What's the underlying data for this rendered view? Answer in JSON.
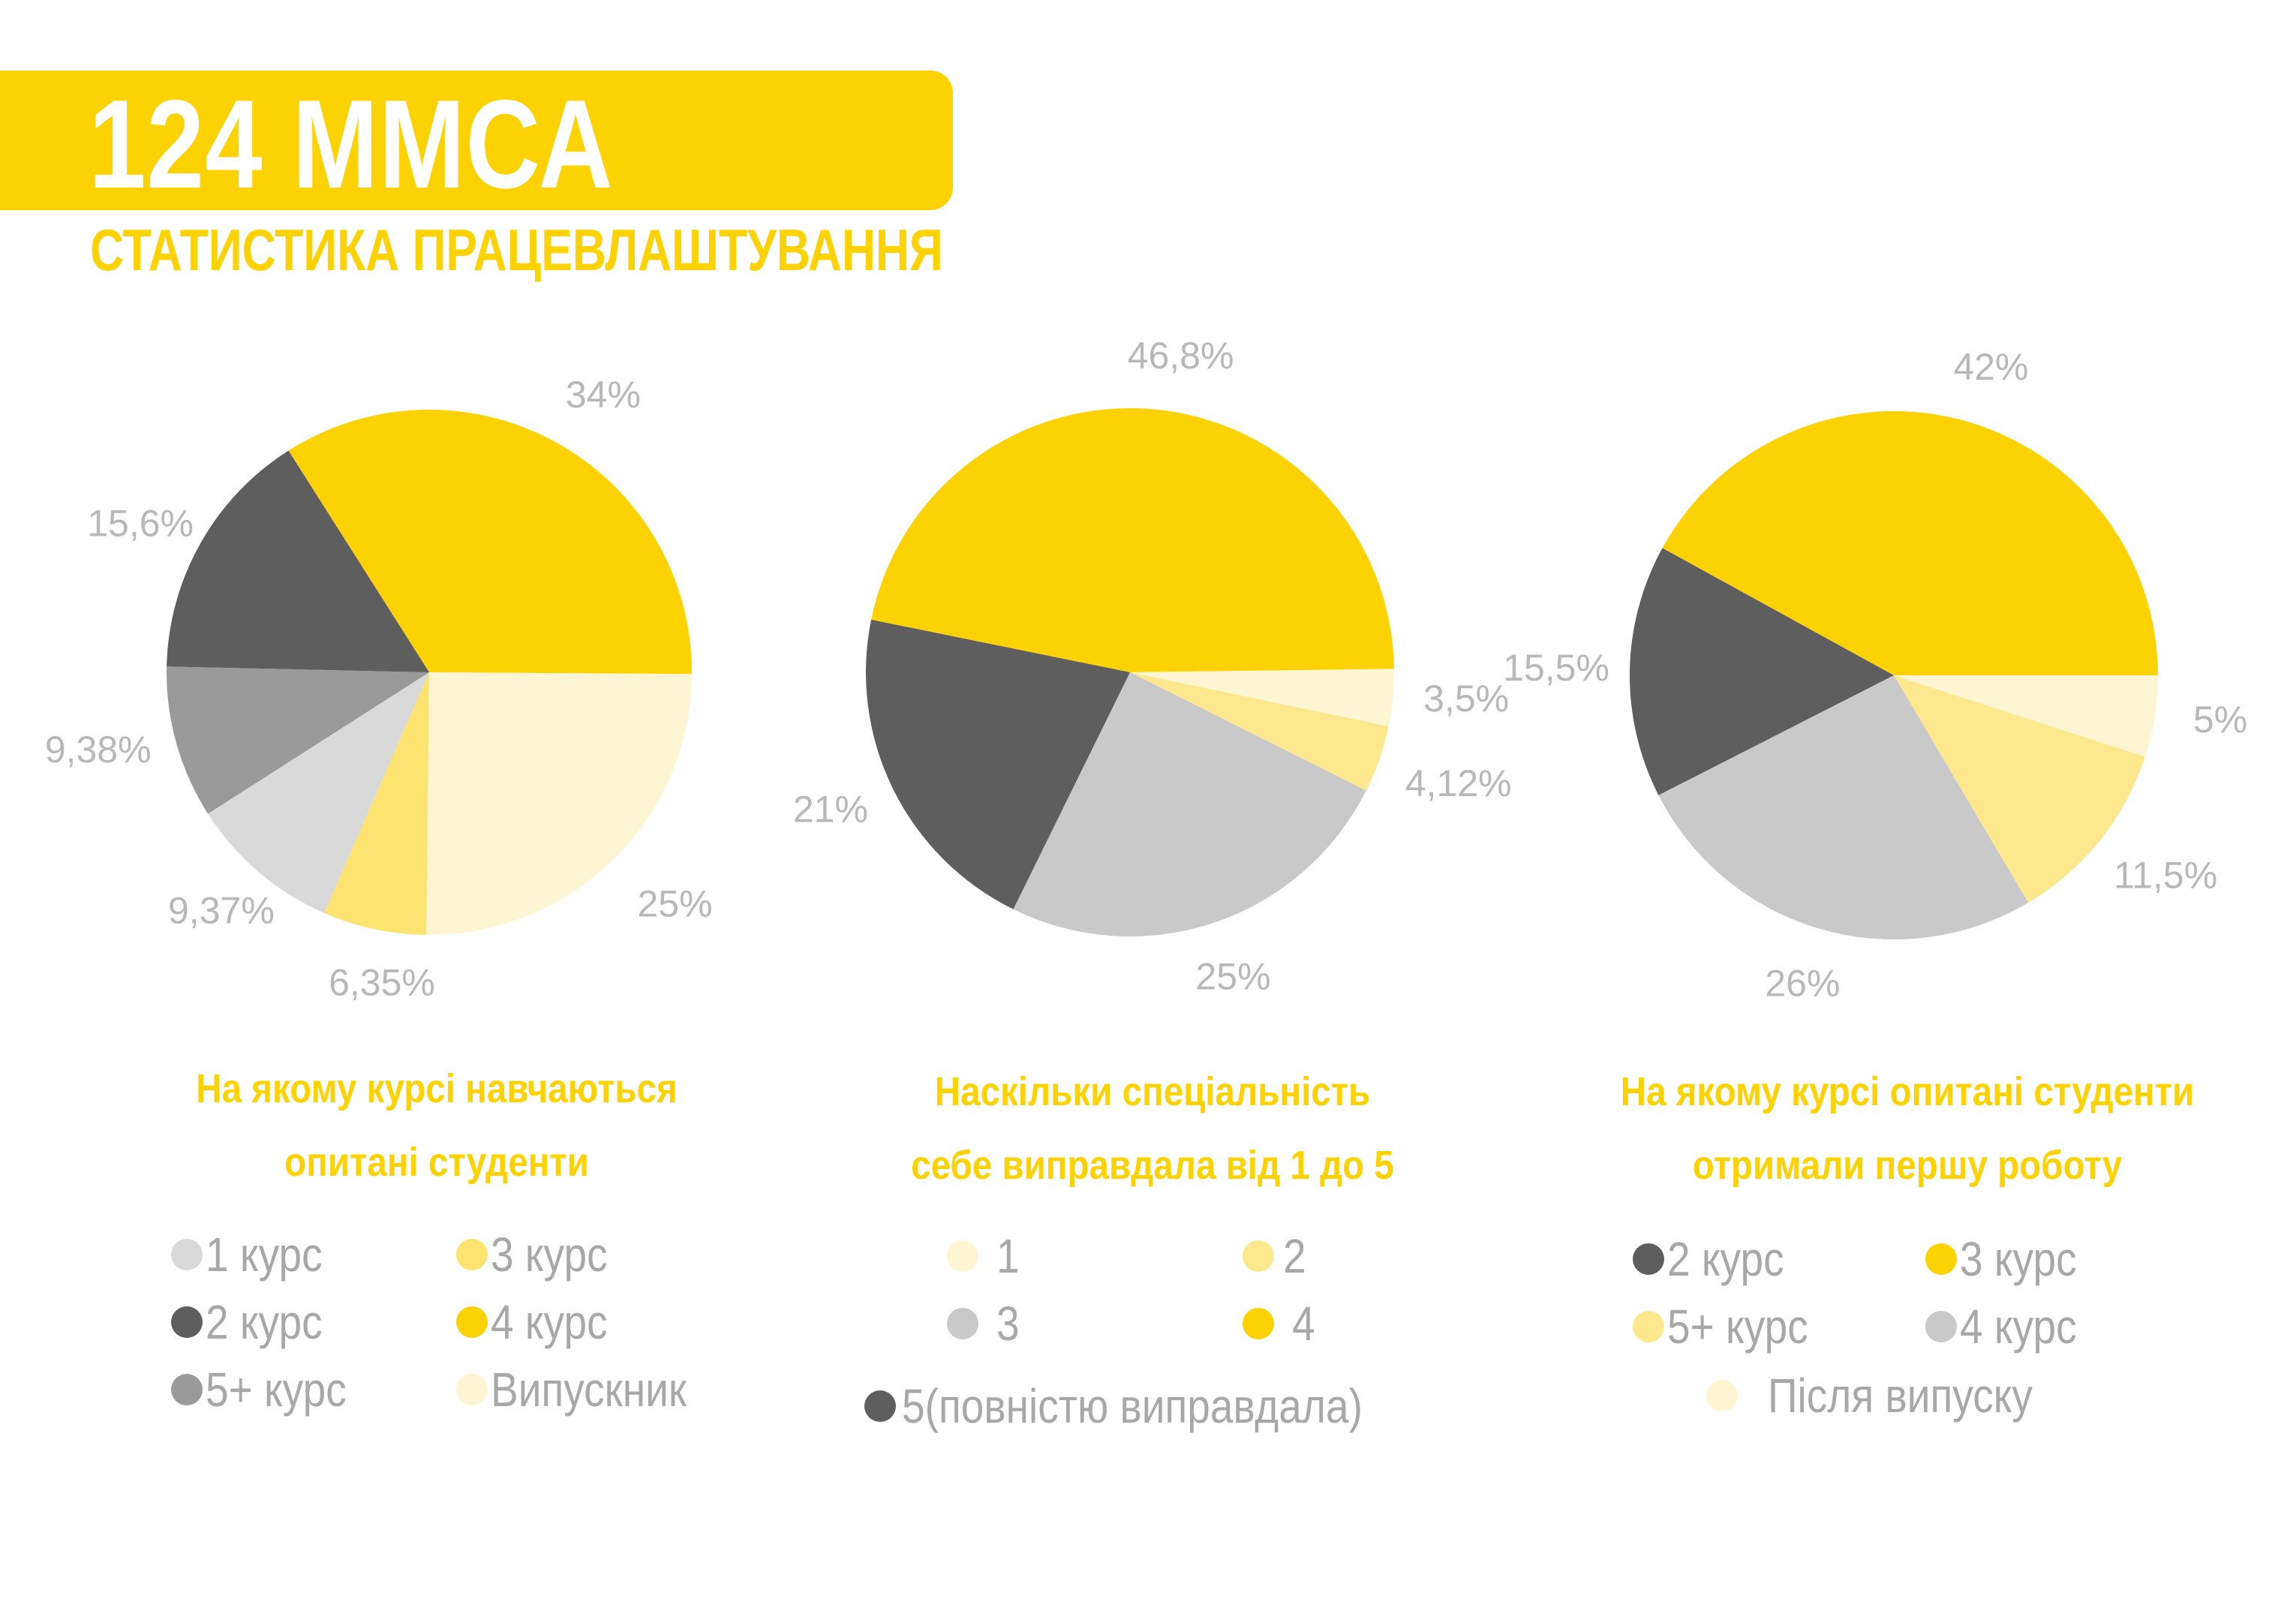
{
  "header": {
    "title": "124 ММСА",
    "subtitle": "СТАТИСТИКА ПРАЦЕВЛАШТУВАННЯ"
  },
  "colors": {
    "yellow": "#FCD203",
    "dark_gray": "#5E5E5E",
    "mid_gray": "#9A9A9A",
    "light_gray": "#C9C9C9",
    "lighter_gray": "#D9D9D9",
    "light_yellow": "#FDE470",
    "cream": "#FEF6D2",
    "pale_yellow": "#FDE88D",
    "label_gray": "#B8B8B8"
  },
  "chart_data": [
    {
      "type": "pie",
      "title_lines": [
        "На якому курсі навчаються",
        "опитані студенти"
      ],
      "slices": [
        {
          "legend": "4 курс",
          "value": 34,
          "label": "34%",
          "color": "#FCD203"
        },
        {
          "legend": "Випускник",
          "value": 25,
          "label": "25%",
          "color": "#FEF6D2"
        },
        {
          "legend": "3 курс",
          "value": 6.35,
          "label": "6,35%",
          "color": "#FDE470"
        },
        {
          "legend": "1 курс",
          "value": 9.37,
          "label": "9,37%",
          "color": "#D9D9D9"
        },
        {
          "legend": "5+ курс",
          "value": 9.38,
          "label": "9,38%",
          "color": "#9A9A9A"
        },
        {
          "legend": "2 курс",
          "value": 15.6,
          "label": "15,6%",
          "color": "#5E5E5E"
        }
      ],
      "legend": [
        {
          "label": "1 курс",
          "color": "#D9D9D9"
        },
        {
          "label": "3 курс",
          "color": "#FDE470"
        },
        {
          "label": "2 курс",
          "color": "#5E5E5E"
        },
        {
          "label": "4 курс",
          "color": "#FCD203"
        },
        {
          "label": "5+ курс",
          "color": "#9A9A9A"
        },
        {
          "label": "Випускник",
          "color": "#FEF6D2"
        }
      ]
    },
    {
      "type": "pie",
      "title_lines": [
        "Наскільки спеціальність",
        "себе виправдала від 1 до 5"
      ],
      "slices": [
        {
          "legend": "4",
          "value": 46.8,
          "label": "46,8%",
          "color": "#FCD203"
        },
        {
          "legend": "1",
          "value": 3.5,
          "label": "3,5%",
          "color": "#FEF6D2"
        },
        {
          "legend": "2",
          "value": 4.12,
          "label": "4,12%",
          "color": "#FDE88D"
        },
        {
          "legend": "3",
          "value": 25,
          "label": "25%",
          "color": "#C9C9C9"
        },
        {
          "legend": "5(повністю виправдала)",
          "value": 21,
          "label": "21%",
          "color": "#5E5E5E"
        }
      ],
      "legend": [
        {
          "label": "1",
          "color": "#FEF6D2"
        },
        {
          "label": "2",
          "color": "#FDE88D"
        },
        {
          "label": "3",
          "color": "#C9C9C9"
        },
        {
          "label": "4",
          "color": "#FCD203"
        },
        {
          "label": "5(повністю виправдала)",
          "color": "#5E5E5E"
        }
      ]
    },
    {
      "type": "pie",
      "title_lines": [
        "На якому курсі опитані студенти",
        "отримали першу роботу"
      ],
      "slices": [
        {
          "legend": "3 курс",
          "value": 42,
          "label": "42%",
          "color": "#FCD203"
        },
        {
          "legend": "Після випуску",
          "value": 5,
          "label": "5%",
          "color": "#FEF6D2"
        },
        {
          "legend": "5+ курс",
          "value": 11.5,
          "label": "11,5%",
          "color": "#FDE88D"
        },
        {
          "legend": "4 курс",
          "value": 26,
          "label": "26%",
          "color": "#C9C9C9"
        },
        {
          "legend": "2 курс",
          "value": 15.5,
          "label": "15,5%",
          "color": "#5E5E5E"
        }
      ],
      "legend": [
        {
          "label": "2 курс",
          "color": "#5E5E5E"
        },
        {
          "label": "3 курс",
          "color": "#FCD203"
        },
        {
          "label": "5+ курс",
          "color": "#FDE88D"
        },
        {
          "label": "4 курс",
          "color": "#C9C9C9"
        },
        {
          "label": "Після випуску",
          "color": "#FEF6D2"
        }
      ]
    }
  ]
}
